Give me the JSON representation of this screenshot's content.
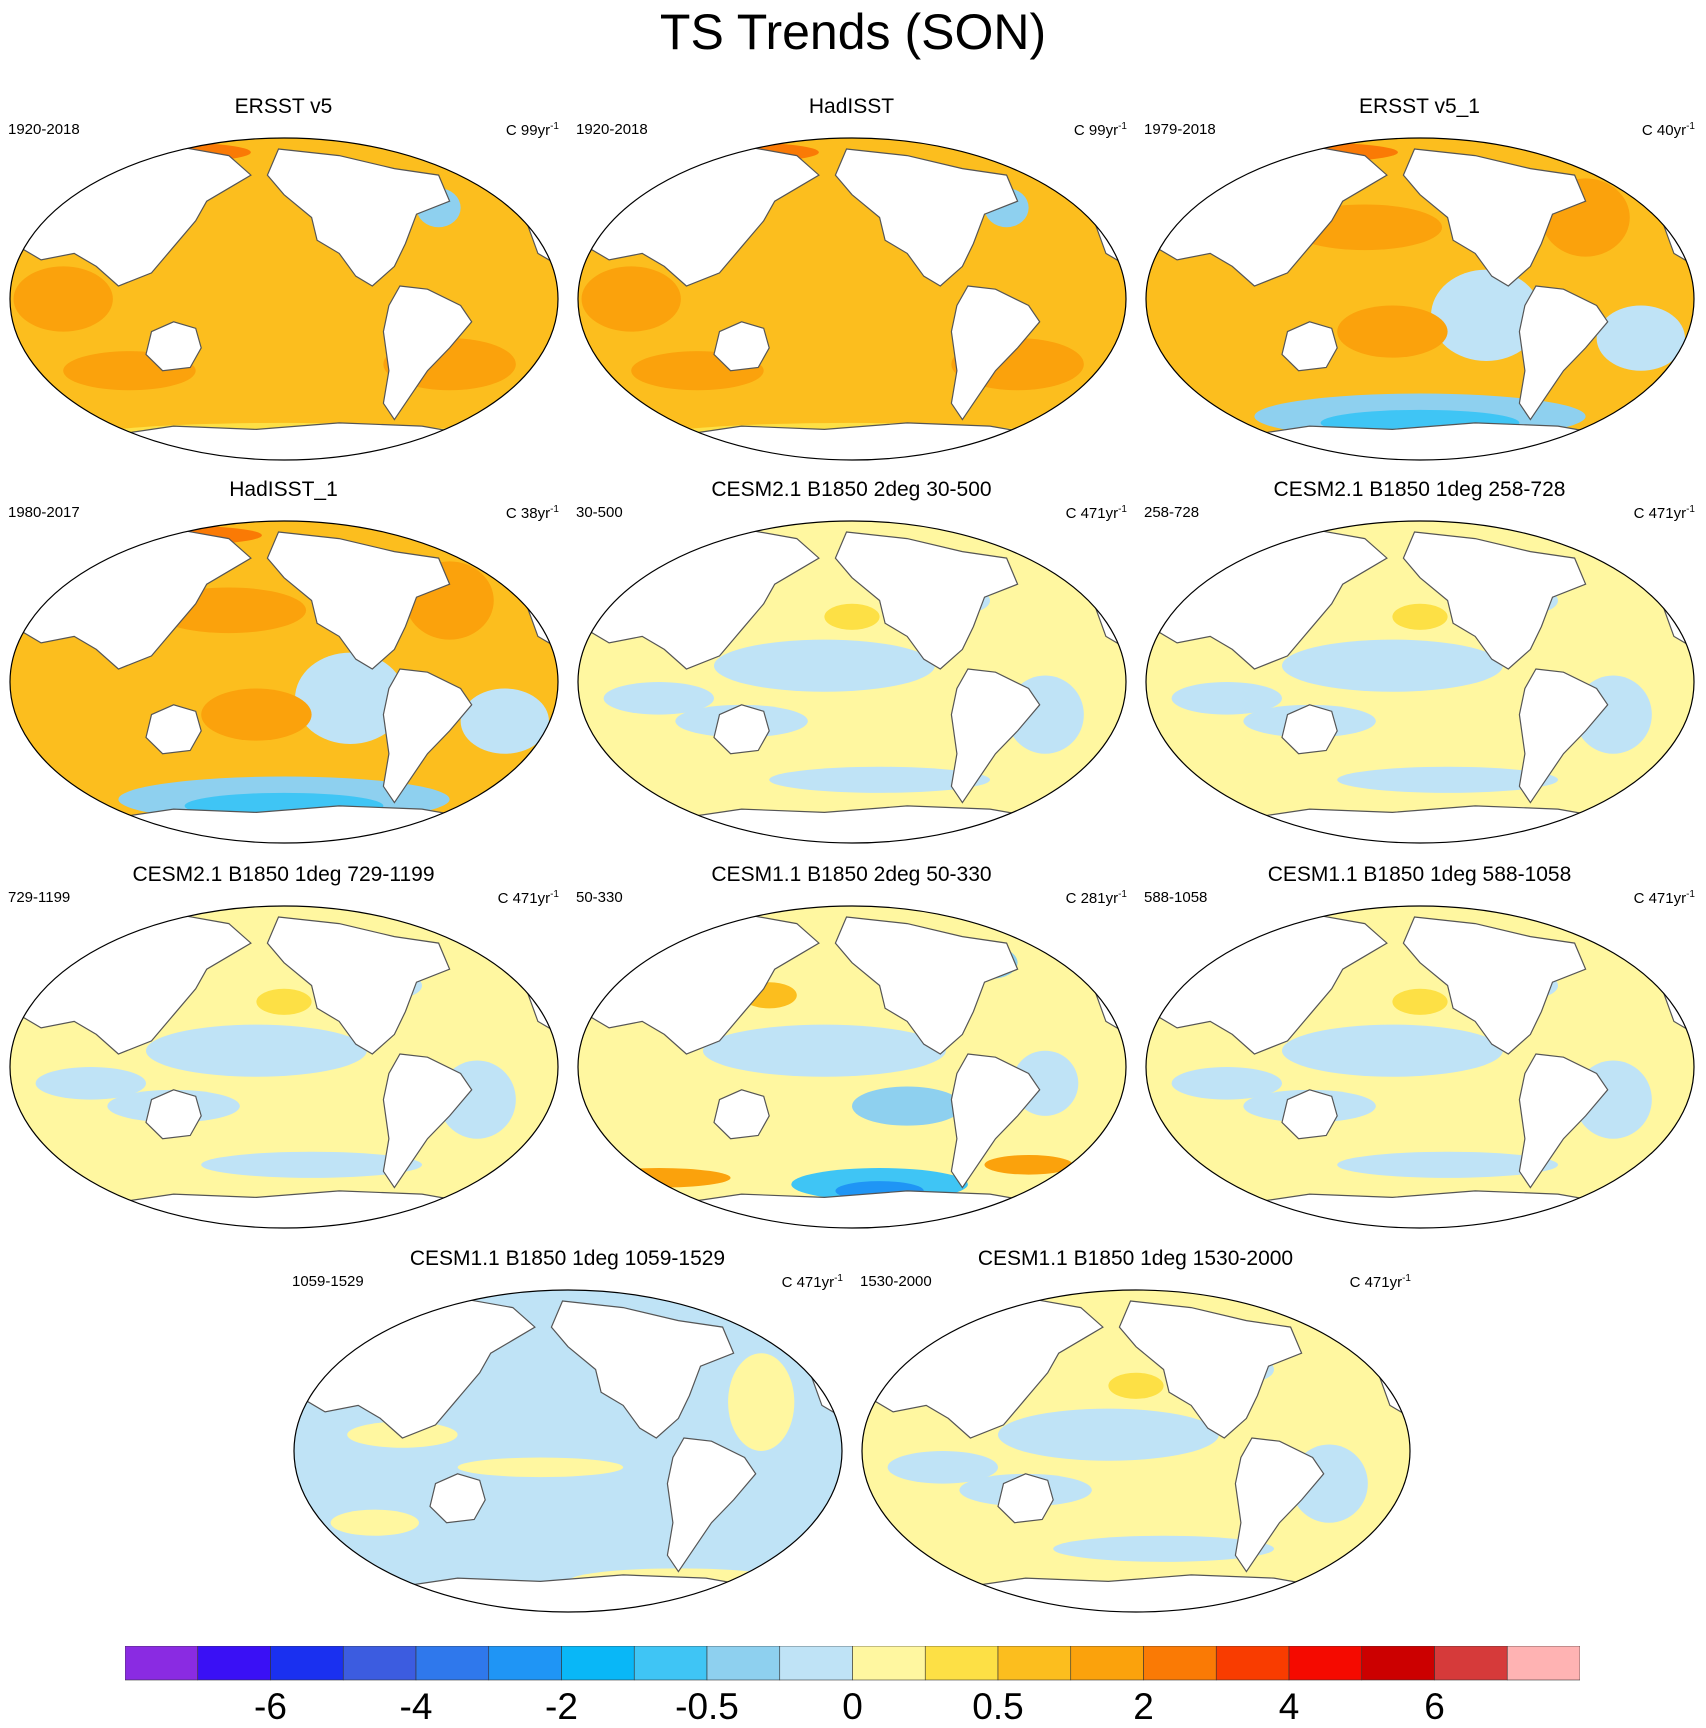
{
  "title": "TS Trends (SON)",
  "panels": [
    {
      "id": "p1",
      "title": "ERSST v5",
      "left": "1920-2018",
      "right": "C 99yr",
      "right_sup": "-1",
      "pattern": "warm",
      "col": 0,
      "row": 0
    },
    {
      "id": "p2",
      "title": "HadISST",
      "left": "1920-2018",
      "right": "C 99yr",
      "right_sup": "-1",
      "pattern": "warm",
      "col": 1,
      "row": 0
    },
    {
      "id": "p3",
      "title": "ERSST v5_1",
      "left": "1979-2018",
      "right": "C 40yr",
      "right_sup": "-1",
      "pattern": "warm-cool",
      "col": 2,
      "row": 0
    },
    {
      "id": "p4",
      "title": "HadISST_1",
      "left": "1980-2017",
      "right": "C 38yr",
      "right_sup": "-1",
      "pattern": "warm-cool",
      "col": 0,
      "row": 1
    },
    {
      "id": "p5",
      "title": "CESM2.1 B1850 2deg 30-500",
      "left": "30-500",
      "right": "C 471yr",
      "right_sup": "-1",
      "pattern": "model",
      "col": 1,
      "row": 1
    },
    {
      "id": "p6",
      "title": "CESM2.1 B1850 1deg 258-728",
      "left": "258-728",
      "right": "C 471yr",
      "right_sup": "-1",
      "pattern": "model",
      "col": 2,
      "row": 1
    },
    {
      "id": "p7",
      "title": "CESM2.1 B1850 1deg 729-1199",
      "left": "729-1199",
      "right": "C 471yr",
      "right_sup": "-1",
      "pattern": "model",
      "col": 0,
      "row": 2
    },
    {
      "id": "p8",
      "title": "CESM1.1 B1850 2deg 50-330",
      "left": "50-330",
      "right": "C 281yr",
      "right_sup": "-1",
      "pattern": "model-strong",
      "col": 1,
      "row": 2
    },
    {
      "id": "p9",
      "title": "CESM1.1 B1850 1deg 588-1058",
      "left": "588-1058",
      "right": "C 471yr",
      "right_sup": "-1",
      "pattern": "model",
      "col": 2,
      "row": 2
    },
    {
      "id": "p10",
      "title": "CESM1.1 B1850 1deg 1059-1529",
      "left": "1059-1529",
      "right": "C 471yr",
      "right_sup": "-1",
      "pattern": "model-cool",
      "col": 0.5,
      "row": 3
    },
    {
      "id": "p11",
      "title": "CESM1.1 B1850 1deg 1530-2000",
      "left": "1530-2000",
      "right": "C 471yr",
      "right_sup": "-1",
      "pattern": "model",
      "col": 1.5,
      "row": 3
    }
  ],
  "colorbar": {
    "colors": [
      "#8a2be2",
      "#3a10f5",
      "#1a30f0",
      "#3c5ce0",
      "#2f78ec",
      "#1f95f5",
      "#09b7f7",
      "#3fc5f5",
      "#8ed0ef",
      "#bfe3f6",
      "#fff7a0",
      "#fde045",
      "#fcbe1e",
      "#fba20c",
      "#fa7a05",
      "#f93c00",
      "#f50a00",
      "#cc0000",
      "#d63a3a",
      "#ffb3b3"
    ],
    "labels": [
      {
        "text": "-6",
        "boundary": 2
      },
      {
        "text": "-4",
        "boundary": 4
      },
      {
        "text": "-2",
        "boundary": 6
      },
      {
        "text": "-0.5",
        "boundary": 8
      },
      {
        "text": "0",
        "boundary": 10
      },
      {
        "text": "0.5",
        "boundary": 12
      },
      {
        "text": "2",
        "boundary": 14
      },
      {
        "text": "4",
        "boundary": 16
      },
      {
        "text": "6",
        "boundary": 18
      }
    ]
  }
}
